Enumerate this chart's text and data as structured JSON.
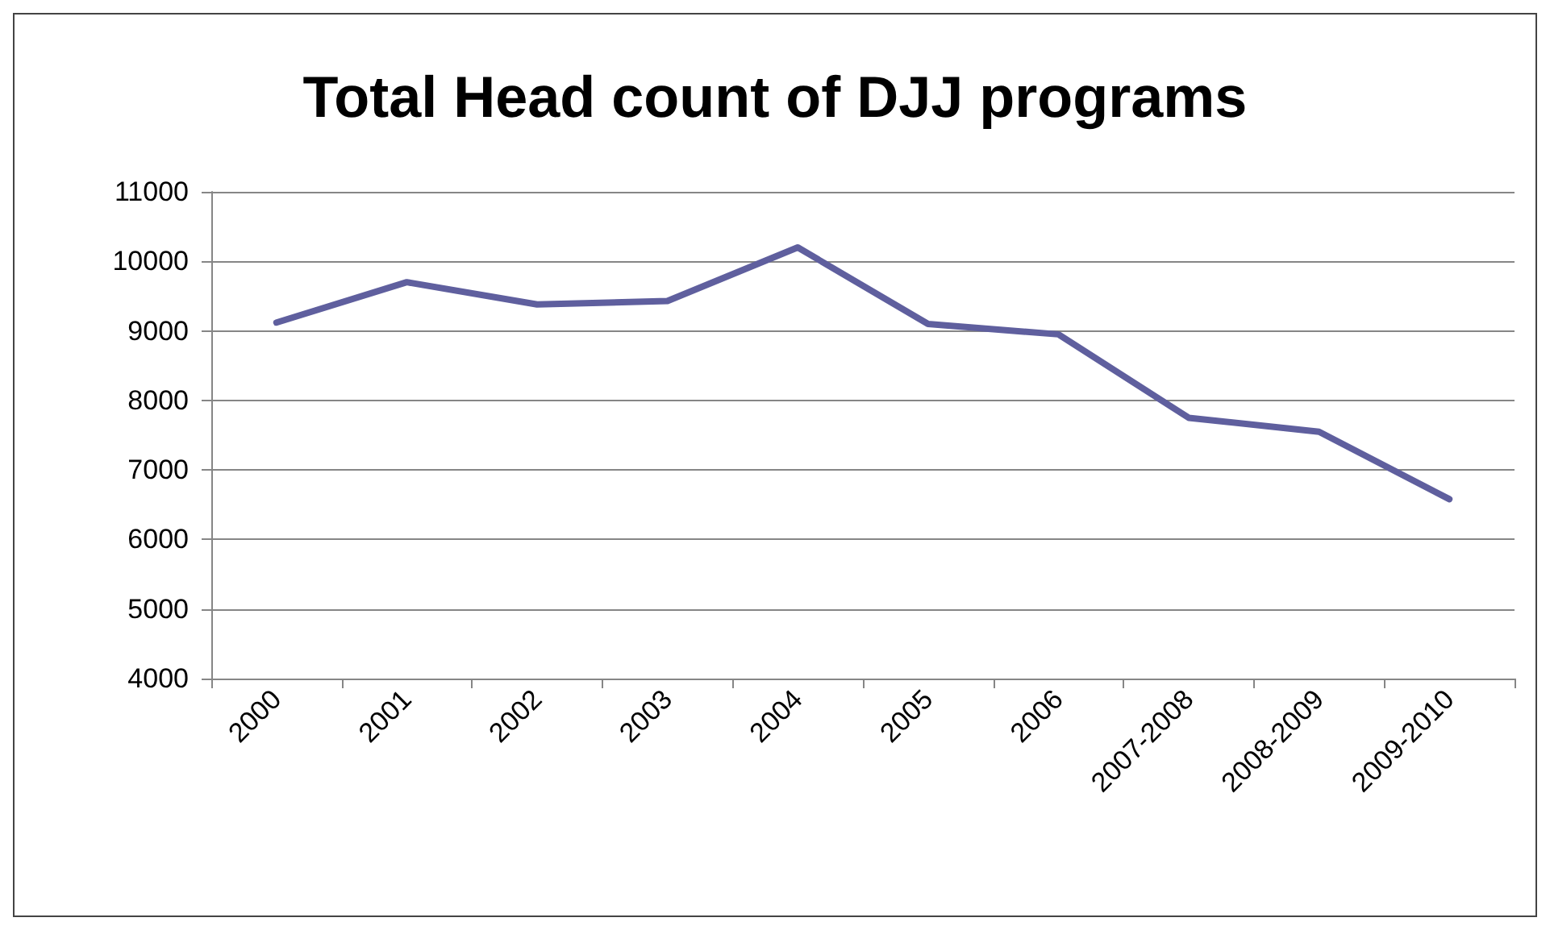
{
  "chart_data": {
    "type": "line",
    "title": "Total Head count of DJJ programs",
    "categories": [
      "2000",
      "2001",
      "2002",
      "2003",
      "2004",
      "2005",
      "2006",
      "2007-2008",
      "2008-2009",
      "2009-2010"
    ],
    "series": [
      {
        "color": "#5f5f9e",
        "values": [
          9120,
          9700,
          9380,
          9430,
          10200,
          9100,
          8950,
          7750,
          7550,
          6580
        ]
      }
    ],
    "ylim": [
      4000,
      11000
    ],
    "yticks": [
      4000,
      5000,
      6000,
      7000,
      8000,
      9000,
      10000,
      11000
    ],
    "grid": "y",
    "marker": "none",
    "line_style": "solid"
  }
}
